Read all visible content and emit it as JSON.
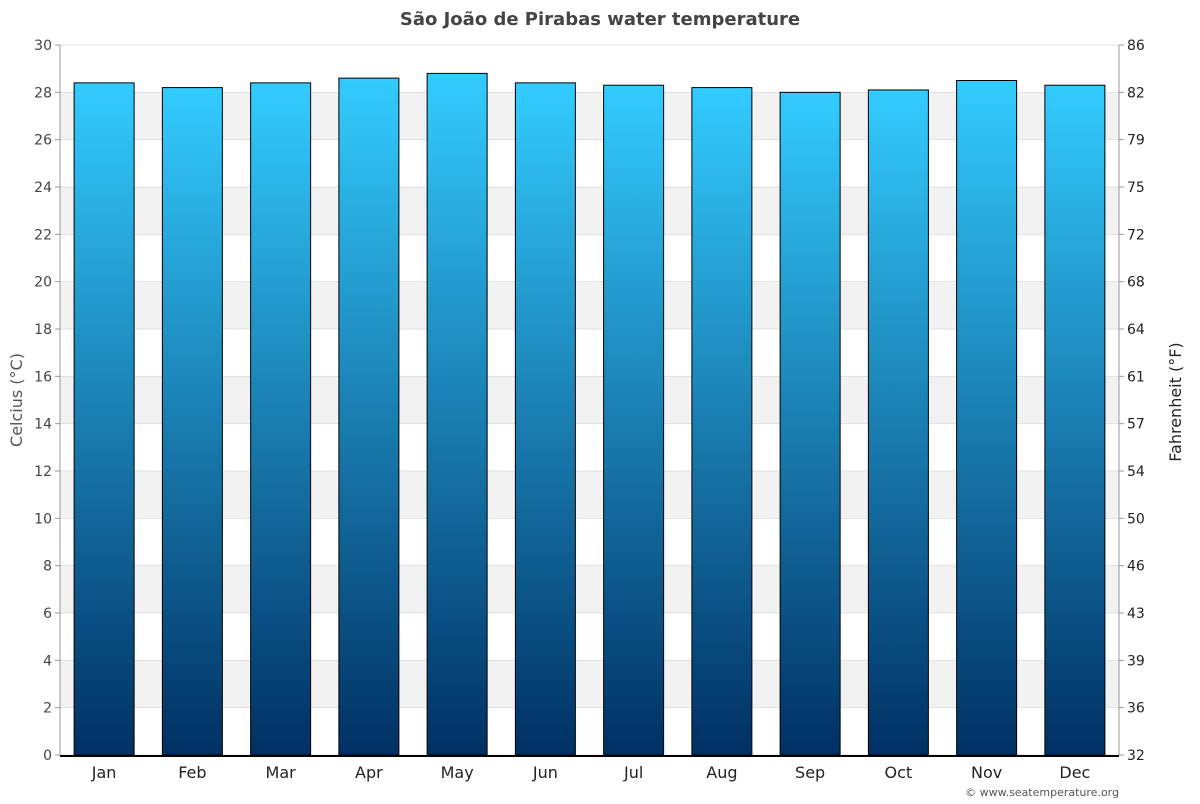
{
  "chart_data": {
    "type": "bar",
    "title": "São João de Pirabas water temperature",
    "categories": [
      "Jan",
      "Feb",
      "Mar",
      "Apr",
      "May",
      "Jun",
      "Jul",
      "Aug",
      "Sep",
      "Oct",
      "Nov",
      "Dec"
    ],
    "values": [
      28.4,
      28.2,
      28.4,
      28.6,
      28.8,
      28.4,
      28.3,
      28.2,
      28.0,
      28.1,
      28.5,
      28.3
    ],
    "ylabel": "Celcius (°C)",
    "ylabel_right": "Fahrenheit (°F)",
    "ylim": [
      0,
      30
    ],
    "yticks": [
      0,
      2,
      4,
      6,
      8,
      10,
      12,
      14,
      16,
      18,
      20,
      22,
      24,
      26,
      28,
      30
    ],
    "yticks_right": [
      "32",
      "36",
      "39",
      "43",
      "46",
      "50",
      "54",
      "57",
      "61",
      "64",
      "68",
      "72",
      "75",
      "79",
      "82",
      "86"
    ],
    "grid": true,
    "bar_color_top": "#33ccff",
    "bar_color_bottom": "#003063",
    "band_color": "#f2f2f2"
  },
  "credit": "© www.seatemperature.org"
}
